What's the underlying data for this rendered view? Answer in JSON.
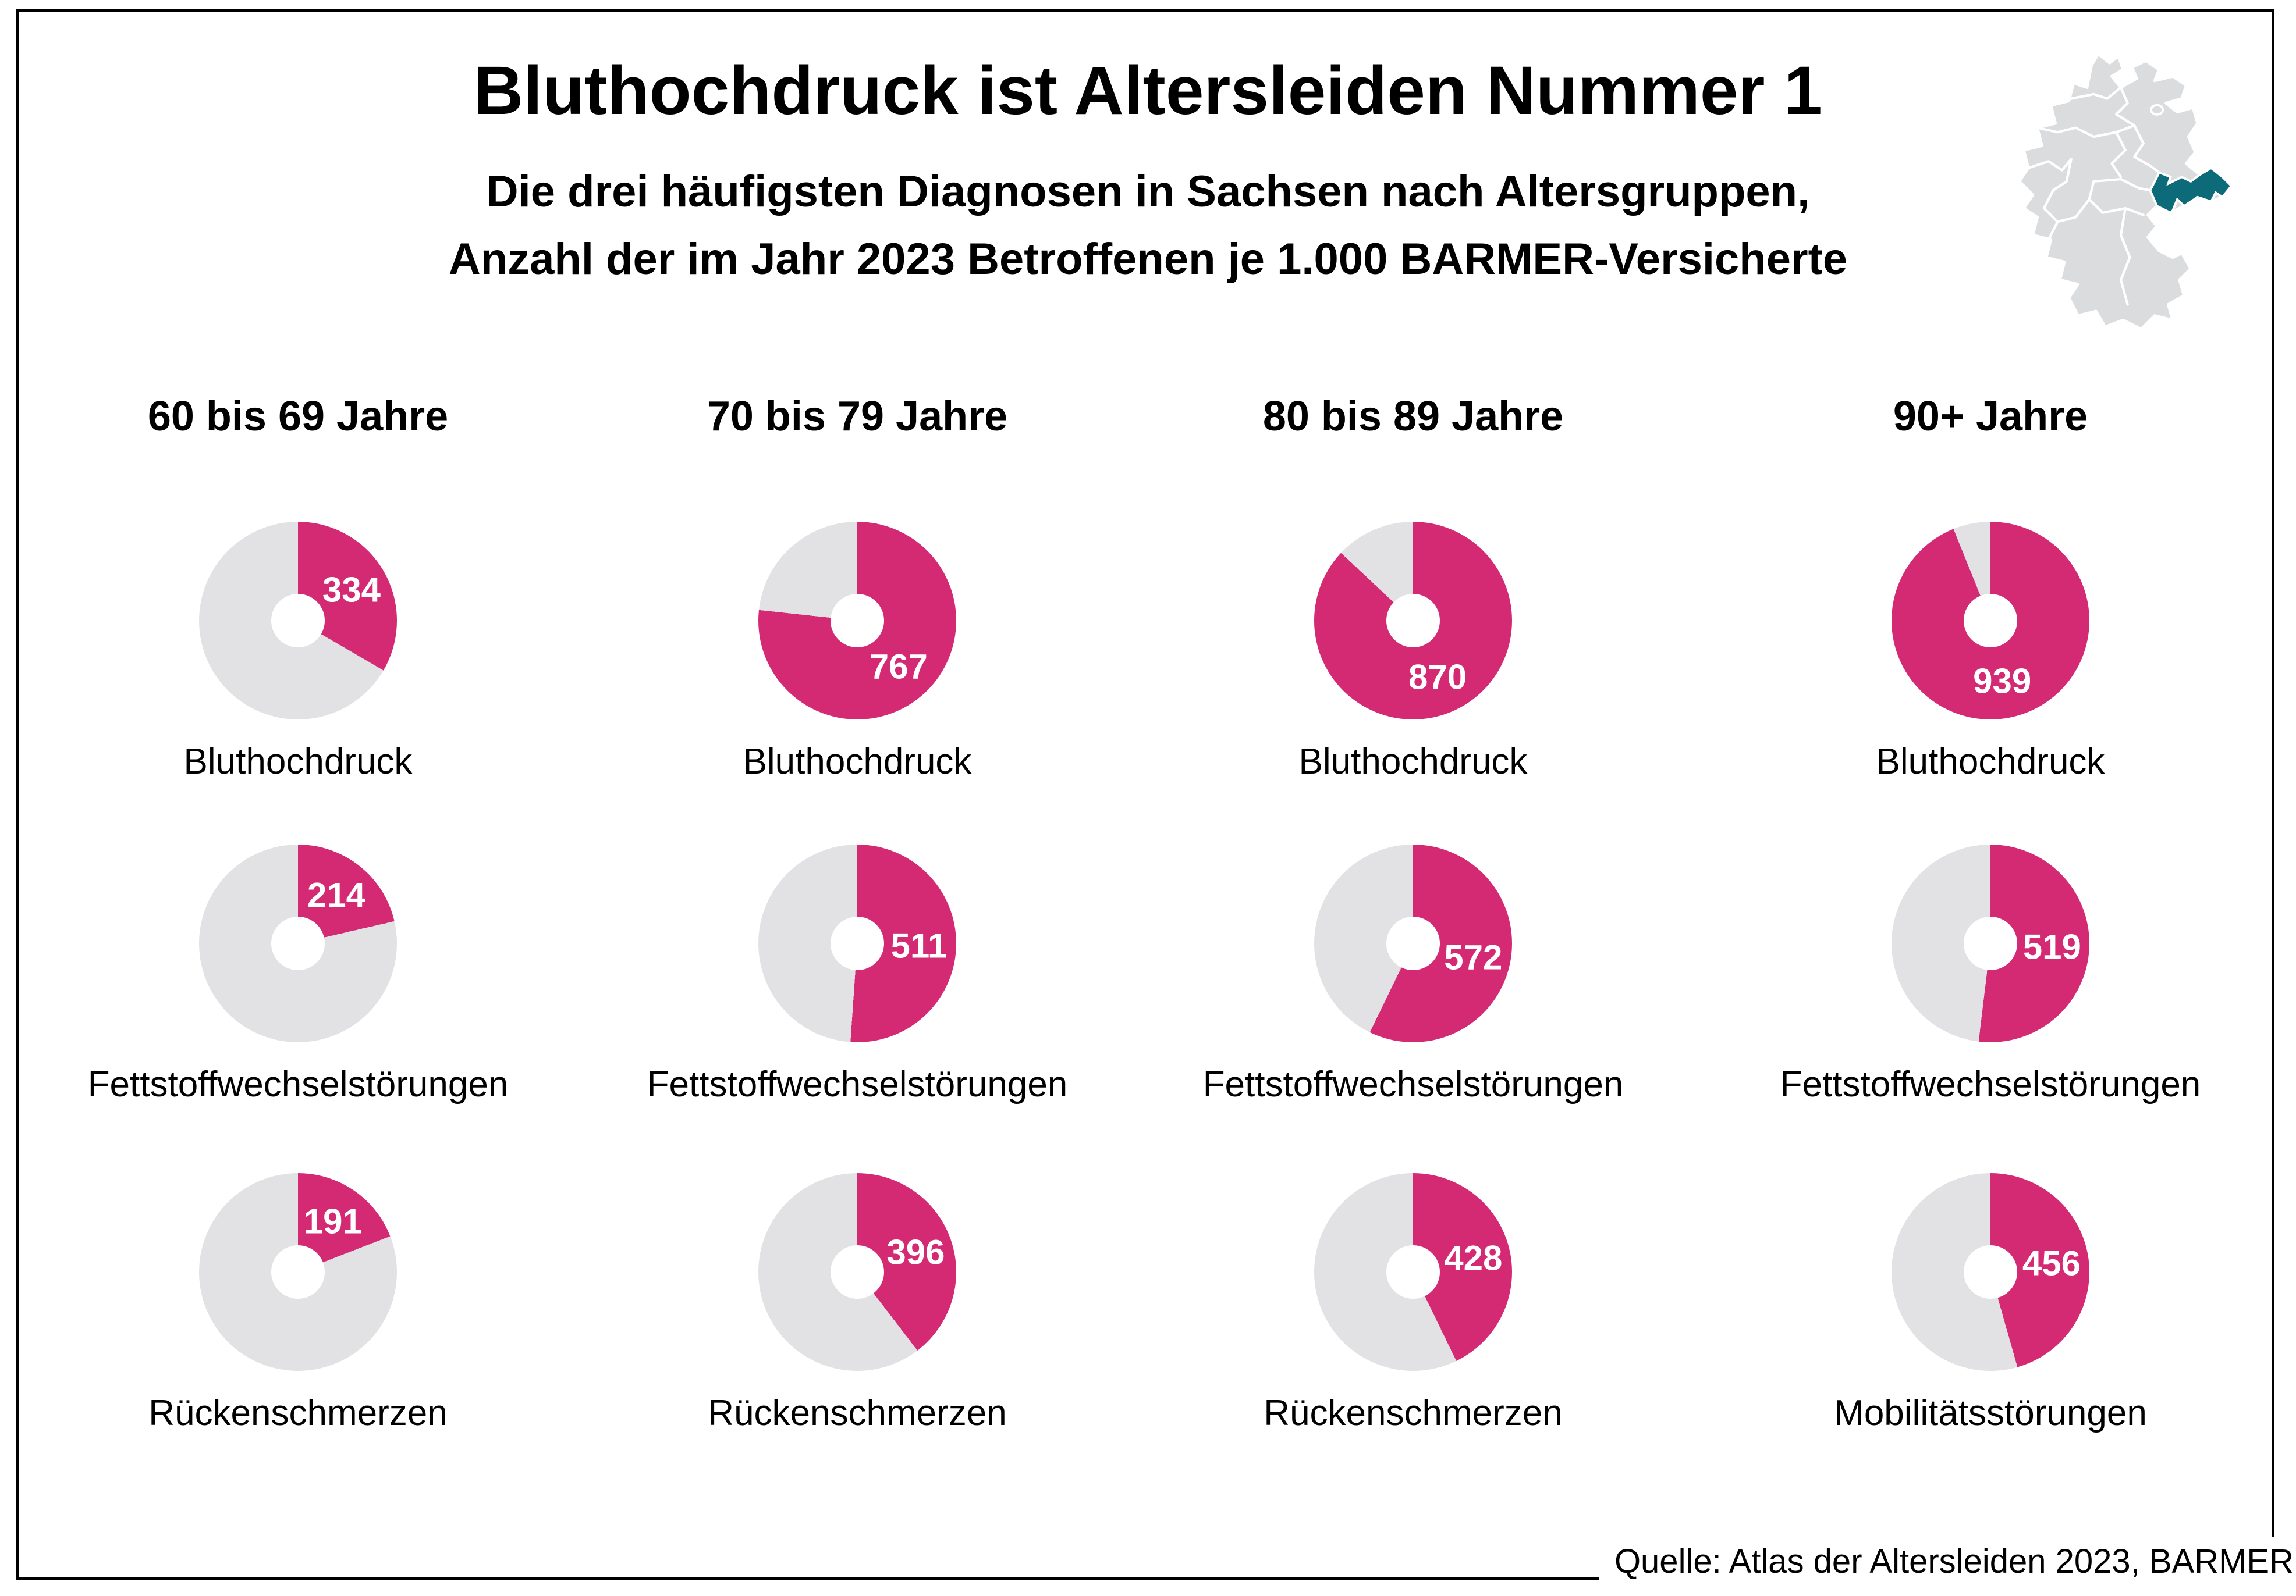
{
  "title": "Bluthochdruck ist Altersleiden Nummer 1",
  "subtitle_line1": "Die drei häufigsten Diagnosen in Sachsen nach Altersgruppen,",
  "subtitle_line2": "Anzahl der im Jahr 2023 Betroffenen je 1.000 BARMER-Versicherte",
  "source": "Quelle: Atlas der Altersleiden 2023, BARMER",
  "map": {
    "highlighted_region": "Sachsen",
    "highlight_color": "#0d6a79",
    "base_color": "#dbdcde",
    "border_color": "#ffffff"
  },
  "colors": {
    "accent_pink": "#d42a74",
    "slice_gray": "#e2e2e4",
    "value_text": "#ffffff",
    "text_black": "#000000"
  },
  "chart_data": {
    "type": "donut-grid",
    "unit": "Betroffene je 1.000 BARMER-Versicherte",
    "year": "2023",
    "max": 1000,
    "age_groups": [
      {
        "label": "60 bis 69 Jahre",
        "diagnoses": [
          {
            "name": "Bluthochdruck",
            "value": 334
          },
          {
            "name": "Fettstoffwechselstörungen",
            "value": 214
          },
          {
            "name": "Rückenschmerzen",
            "value": 191
          }
        ]
      },
      {
        "label": "70 bis 79 Jahre",
        "diagnoses": [
          {
            "name": "Bluthochdruck",
            "value": 767
          },
          {
            "name": "Fettstoffwechselstörungen",
            "value": 511
          },
          {
            "name": "Rückenschmerzen",
            "value": 396
          }
        ]
      },
      {
        "label": "80 bis 89 Jahre",
        "diagnoses": [
          {
            "name": "Bluthochdruck",
            "value": 870
          },
          {
            "name": "Fettstoffwechselstörungen",
            "value": 572
          },
          {
            "name": "Rückenschmerzen",
            "value": 428
          }
        ]
      },
      {
        "label": "90+ Jahre",
        "diagnoses": [
          {
            "name": "Bluthochdruck",
            "value": 939
          },
          {
            "name": "Fettstoffwechselstörungen",
            "value": 519
          },
          {
            "name": "Mobilitätsstörungen",
            "value": 456
          }
        ]
      }
    ]
  }
}
